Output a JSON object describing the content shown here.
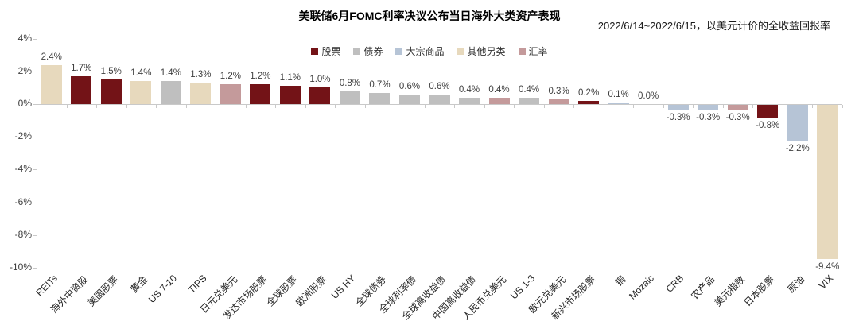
{
  "chart_data": {
    "type": "bar",
    "title": "美联储6月FOMC利率决议公布当日海外大类资产表现",
    "subtitle": "2022/6/14~2022/6/15，以美元计价的全收益回报率",
    "unit": "%",
    "grid": false,
    "legend_position": "top-center",
    "ylim": [
      -10,
      4
    ],
    "yticks": [
      {
        "value": 4,
        "label": "4%"
      },
      {
        "value": 2,
        "label": "2%"
      },
      {
        "value": 0,
        "label": "0%"
      },
      {
        "value": -2,
        "label": "-2%"
      },
      {
        "value": -4,
        "label": "-4%"
      },
      {
        "value": -6,
        "label": "-6%"
      },
      {
        "value": -8,
        "label": "-8%"
      },
      {
        "value": -10,
        "label": "-10%"
      }
    ],
    "legend": [
      {
        "label": "股票",
        "color": "#731317"
      },
      {
        "label": "债券",
        "color": "#bfbfbf"
      },
      {
        "label": "大宗商品",
        "color": "#b6c4d6"
      },
      {
        "label": "其他另类",
        "color": "#e7d9bd"
      },
      {
        "label": "汇率",
        "color": "#c49a9b"
      }
    ],
    "bars": [
      {
        "label": "REITs",
        "value": 2.4,
        "display": "2.4%",
        "group": "其他另类"
      },
      {
        "label": "海外中资股",
        "value": 1.7,
        "display": "1.7%",
        "group": "股票"
      },
      {
        "label": "美国股票",
        "value": 1.5,
        "display": "1.5%",
        "group": "股票"
      },
      {
        "label": "黄金",
        "value": 1.4,
        "display": "1.4%",
        "group": "其他另类"
      },
      {
        "label": "US 7-10",
        "value": 1.4,
        "display": "1.4%",
        "group": "债券"
      },
      {
        "label": "TIPS",
        "value": 1.3,
        "display": "1.3%",
        "group": "其他另类"
      },
      {
        "label": "日元兑美元",
        "value": 1.2,
        "display": "1.2%",
        "group": "汇率"
      },
      {
        "label": "发达市场股票",
        "value": 1.2,
        "display": "1.2%",
        "group": "股票"
      },
      {
        "label": "全球股票",
        "value": 1.1,
        "display": "1.1%",
        "group": "股票"
      },
      {
        "label": "欧洲股票",
        "value": 1.0,
        "display": "1.0%",
        "group": "股票"
      },
      {
        "label": "US HY",
        "value": 0.8,
        "display": "0.8%",
        "group": "债券"
      },
      {
        "label": "全球债券",
        "value": 0.7,
        "display": "0.7%",
        "group": "债券"
      },
      {
        "label": "全球利率债",
        "value": 0.6,
        "display": "0.6%",
        "group": "债券"
      },
      {
        "label": "全球高收益债",
        "value": 0.6,
        "display": "0.6%",
        "group": "债券"
      },
      {
        "label": "中国高收益债",
        "value": 0.4,
        "display": "0.4%",
        "group": "债券"
      },
      {
        "label": "人民币兑美元",
        "value": 0.4,
        "display": "0.4%",
        "group": "汇率"
      },
      {
        "label": "US 1-3",
        "value": 0.4,
        "display": "0.4%",
        "group": "债券"
      },
      {
        "label": "欧元兑美元",
        "value": 0.3,
        "display": "0.3%",
        "group": "汇率"
      },
      {
        "label": "新兴市场股票",
        "value": 0.2,
        "display": "0.2%",
        "group": "股票"
      },
      {
        "label": "铜",
        "value": 0.1,
        "display": "0.1%",
        "group": "大宗商品"
      },
      {
        "label": "Mozaic",
        "value": 0.0,
        "display": "0.0%",
        "group": "其他另类"
      },
      {
        "label": "CRB",
        "value": -0.3,
        "display": "-0.3%",
        "group": "大宗商品"
      },
      {
        "label": "农产品",
        "value": -0.3,
        "display": "-0.3%",
        "group": "大宗商品"
      },
      {
        "label": "美元指数",
        "value": -0.3,
        "display": "-0.3%",
        "group": "汇率"
      },
      {
        "label": "日本股票",
        "value": -0.8,
        "display": "-0.8%",
        "group": "股票"
      },
      {
        "label": "原油",
        "value": -2.2,
        "display": "-2.2%",
        "group": "大宗商品"
      },
      {
        "label": "VIX",
        "value": -9.4,
        "display": "-9.4%",
        "group": "其他另类"
      }
    ],
    "colors": {
      "axis": "#c9c9c9",
      "value_label": "#3f3f3f",
      "tick_label": "#404040"
    }
  }
}
